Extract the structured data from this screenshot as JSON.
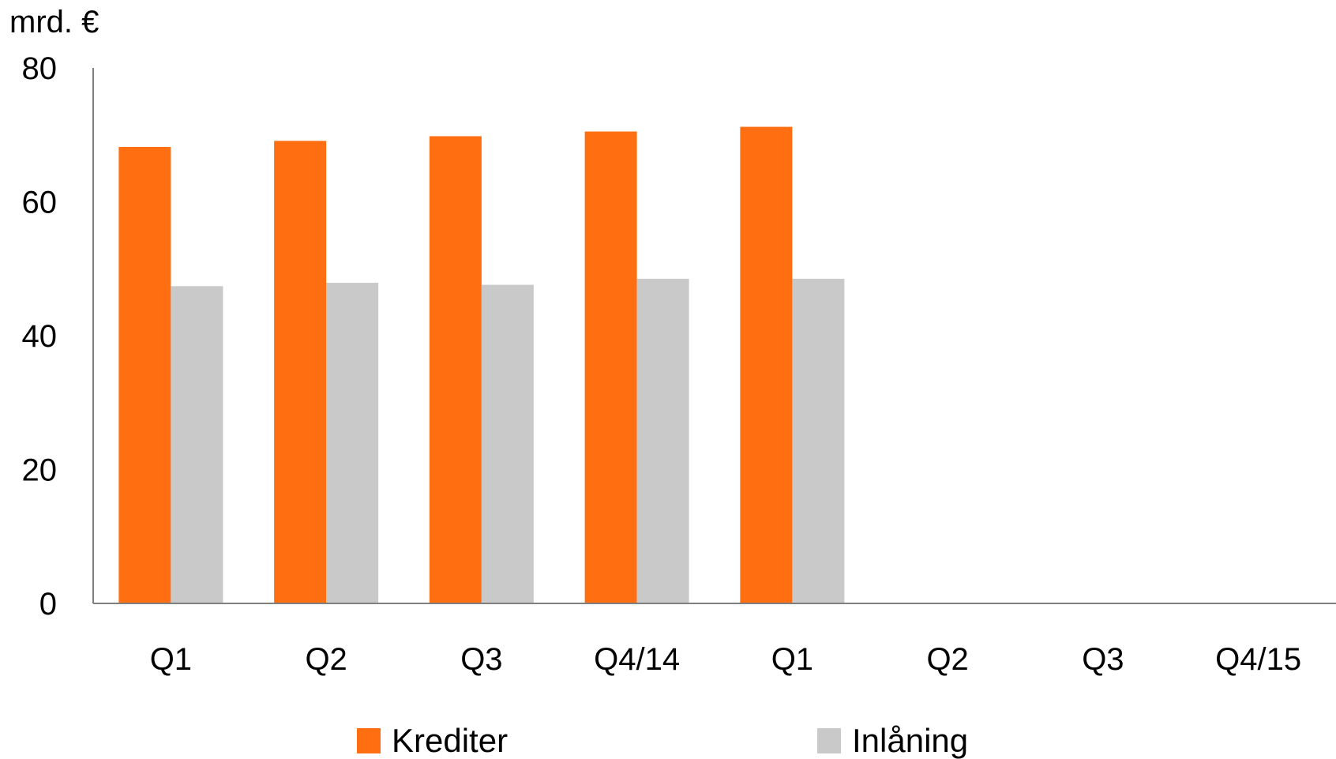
{
  "chart_data": {
    "type": "bar",
    "ylabel": "mrd. €",
    "ylim": [
      0,
      80
    ],
    "yticks": [
      0,
      20,
      40,
      60,
      80
    ],
    "categories": [
      "Q1",
      "Q2",
      "Q3",
      "Q4/14",
      "Q1",
      "Q2",
      "Q3",
      "Q4/15"
    ],
    "series": [
      {
        "name": "Krediter",
        "color": "#ff6f11",
        "values": [
          68.2,
          69.1,
          69.8,
          70.5,
          71.2,
          null,
          null,
          null
        ]
      },
      {
        "name": "Inlåning",
        "color": "#c9c9c9",
        "values": [
          47.4,
          47.9,
          47.6,
          48.5,
          48.5,
          null,
          null,
          null
        ]
      }
    ],
    "grid": false,
    "legend_position": "bottom"
  }
}
